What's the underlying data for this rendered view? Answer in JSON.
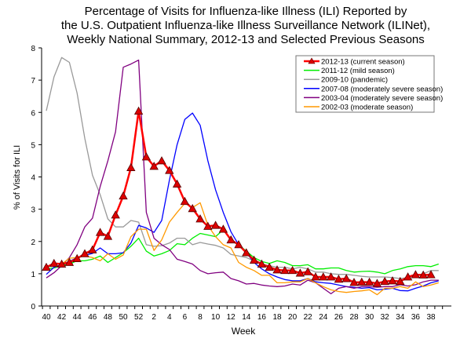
{
  "chart_data": {
    "type": "line",
    "title": [
      "Percentage of Visits for Influenza-like Illness (ILI) Reported by",
      "the U.S. Outpatient Influenza-like Illness Surveillance Network (ILINet),",
      "Weekly National Summary, 2012-13 and Selected Previous Seasons"
    ],
    "xlabel": "Week",
    "ylabel": "% of Visits for ILI",
    "ylim": [
      0,
      8
    ],
    "yticks": [
      0,
      1,
      2,
      3,
      4,
      5,
      6,
      7,
      8
    ],
    "weeks": [
      40,
      41,
      42,
      43,
      44,
      45,
      46,
      47,
      48,
      49,
      50,
      51,
      52,
      1,
      2,
      3,
      4,
      5,
      6,
      7,
      8,
      9,
      10,
      11,
      12,
      13,
      14,
      15,
      16,
      17,
      18,
      19,
      20,
      21,
      22,
      23,
      24,
      25,
      26,
      27,
      28,
      29,
      30,
      31,
      32,
      33,
      34,
      35,
      36,
      37,
      38,
      39
    ],
    "xtick_labels": [
      "40",
      "42",
      "44",
      "46",
      "48",
      "50",
      "52",
      "2",
      "4",
      "6",
      "8",
      "10",
      "12",
      "14",
      "16",
      "18",
      "20",
      "22",
      "24",
      "26",
      "28",
      "30",
      "32",
      "34",
      "36",
      "38"
    ],
    "grid": false,
    "legend_placement": "top-right",
    "series": [
      {
        "name": "2012-13 (current season)",
        "color": "#ff0000",
        "marker": "triangle",
        "values": [
          1.2,
          1.32,
          1.3,
          1.35,
          1.47,
          1.62,
          1.74,
          2.28,
          2.16,
          2.82,
          3.41,
          4.29,
          6.04,
          4.62,
          4.33,
          4.5,
          4.2,
          3.78,
          3.24,
          3.02,
          2.7,
          2.47,
          2.5,
          2.38,
          2.05,
          1.9,
          1.65,
          1.42,
          1.3,
          1.2,
          1.12,
          1.1,
          1.1,
          1.02,
          1.06,
          0.9,
          0.9,
          0.9,
          0.83,
          0.85,
          0.73,
          0.74,
          0.74,
          0.7,
          0.76,
          0.78,
          0.76,
          0.9,
          0.97,
          0.96,
          0.97
        ]
      },
      {
        "name": "2011-12 (mild season)",
        "color": "#00ee00",
        "values": [
          1.15,
          1.18,
          1.25,
          1.3,
          1.4,
          1.4,
          1.45,
          1.55,
          1.35,
          1.5,
          1.65,
          1.85,
          2.1,
          1.7,
          1.55,
          1.62,
          1.72,
          1.93,
          1.9,
          2.1,
          2.25,
          2.2,
          2.15,
          2.36,
          2.05,
          1.9,
          1.7,
          1.5,
          1.38,
          1.32,
          1.4,
          1.35,
          1.25,
          1.25,
          1.28,
          1.15,
          1.15,
          1.18,
          1.18,
          1.1,
          1.05,
          1.07,
          1.08,
          1.05,
          1.0,
          1.1,
          1.15,
          1.22,
          1.25,
          1.25,
          1.22,
          1.3
        ]
      },
      {
        "name": "2009-10 (pandemic)",
        "color": "#999999",
        "values": [
          6.05,
          7.1,
          7.7,
          7.55,
          6.6,
          5.2,
          4.05,
          3.45,
          2.7,
          2.45,
          2.45,
          2.65,
          2.6,
          1.9,
          1.85,
          1.87,
          1.95,
          2.1,
          2.1,
          1.9,
          1.97,
          1.92,
          1.88,
          1.8,
          1.6,
          1.55,
          1.5,
          1.4,
          1.3,
          1.25,
          1.2,
          1.2,
          1.15,
          1.2,
          1.15,
          1.05,
          1.05,
          1.0,
          0.98,
          0.98,
          0.95,
          0.92,
          0.9,
          0.9,
          0.9,
          0.88,
          0.85,
          0.88,
          0.95,
          1.0,
          1.1,
          1.1
        ]
      },
      {
        "name": "2007-08 (moderately severe season)",
        "color": "#0000ff",
        "values": [
          0.98,
          1.2,
          1.28,
          1.38,
          1.5,
          1.57,
          1.63,
          1.8,
          1.62,
          1.62,
          1.65,
          1.95,
          2.5,
          2.42,
          2.28,
          2.65,
          3.9,
          5.0,
          5.78,
          5.98,
          5.6,
          4.5,
          3.6,
          2.9,
          2.3,
          1.9,
          1.65,
          1.35,
          1.15,
          1.0,
          0.9,
          0.82,
          0.78,
          0.78,
          0.85,
          0.75,
          0.72,
          0.7,
          0.65,
          0.6,
          0.58,
          0.55,
          0.57,
          0.5,
          0.52,
          0.55,
          0.48,
          0.47,
          0.55,
          0.62,
          0.72,
          0.78
        ]
      },
      {
        "name": "2003-04 (moderately severe season)",
        "color": "#800080",
        "values": [
          0.87,
          1.03,
          1.25,
          1.5,
          1.9,
          2.45,
          2.72,
          3.7,
          4.5,
          5.4,
          7.4,
          7.5,
          7.62,
          2.9,
          2.1,
          1.9,
          1.75,
          1.45,
          1.38,
          1.3,
          1.1,
          1.0,
          1.03,
          1.05,
          0.85,
          0.78,
          0.68,
          0.7,
          0.65,
          0.62,
          0.6,
          0.62,
          0.68,
          0.65,
          0.8,
          0.72,
          0.55,
          0.38,
          0.55,
          0.6,
          0.55,
          0.6,
          0.6,
          0.58,
          0.6,
          0.6,
          0.66,
          0.62,
          0.66,
          0.75,
          0.8,
          0.8
        ]
      },
      {
        "name": "2002-03 (moderate season)",
        "color": "#ff9900",
        "values": [
          1.2,
          1.3,
          1.3,
          1.48,
          1.5,
          1.55,
          1.5,
          1.4,
          1.62,
          1.45,
          1.58,
          2.15,
          2.38,
          2.38,
          1.72,
          2.05,
          2.6,
          2.9,
          3.18,
          3.05,
          3.2,
          2.5,
          2.15,
          1.9,
          1.8,
          1.35,
          1.2,
          1.1,
          0.95,
          0.95,
          0.72,
          0.72,
          0.75,
          0.75,
          0.85,
          0.72,
          0.6,
          0.5,
          0.45,
          0.42,
          0.45,
          0.47,
          0.5,
          0.35,
          0.55,
          0.55,
          0.6,
          0.55,
          0.75,
          0.6,
          0.65,
          0.72
        ]
      }
    ]
  }
}
